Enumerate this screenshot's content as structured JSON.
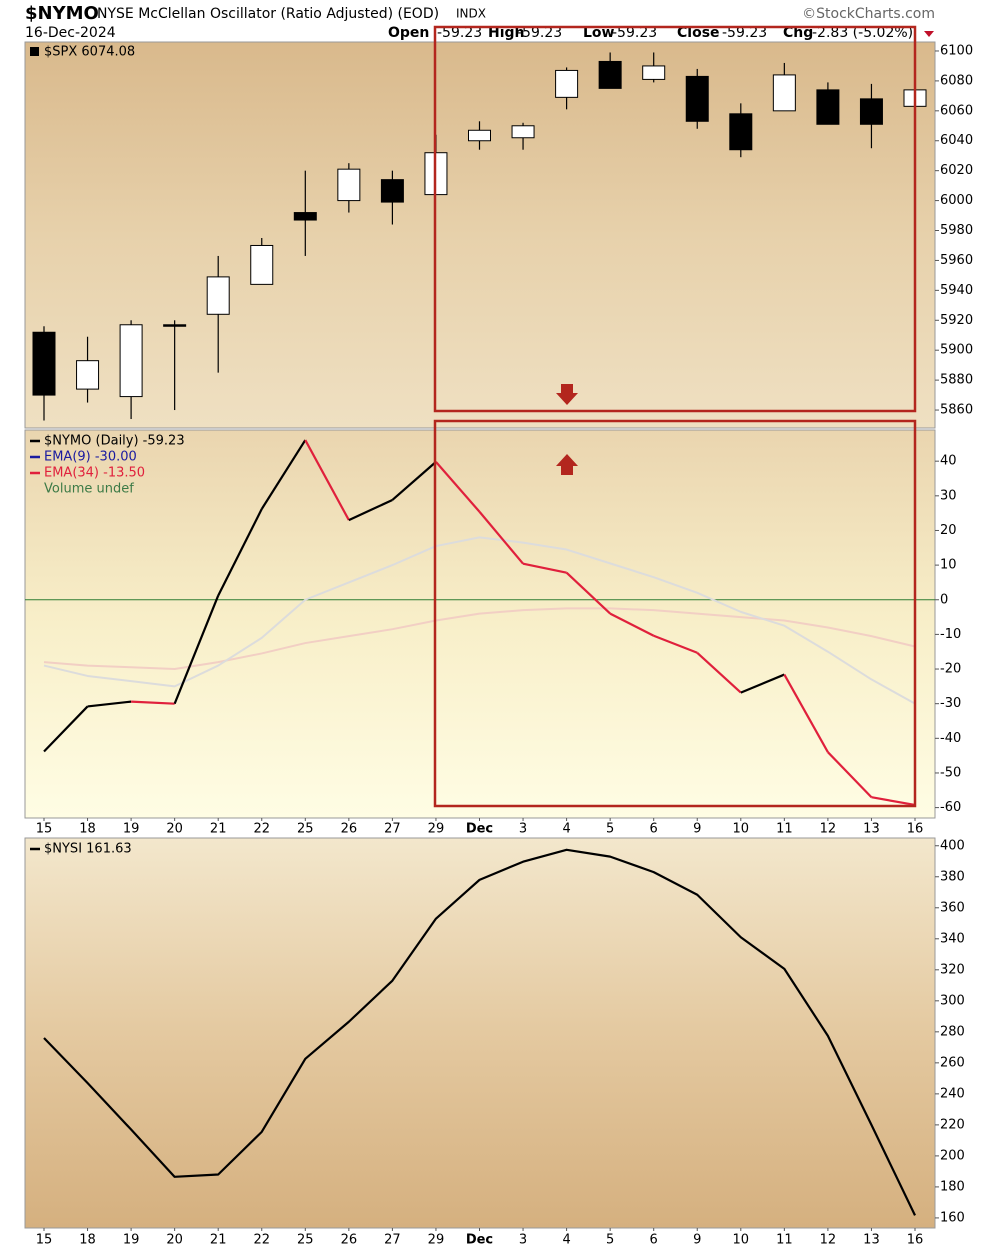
{
  "header": {
    "symbol": "$NYMO",
    "name": "NYSE McClellan Oscillator (Ratio Adjusted) (EOD)",
    "exchange": "INDX",
    "source": "©StockCharts.com",
    "date": "16-Dec-2024",
    "quote": [
      {
        "label": "Open",
        "value": -59.23
      },
      {
        "label": "High",
        "value": -59.23
      },
      {
        "label": "Low",
        "value": -59.23
      },
      {
        "label": "Close",
        "value": -59.23
      },
      {
        "label": "Chg",
        "value": "-2.83 (-5.02%)"
      }
    ]
  },
  "chart_data": [
    {
      "type": "candlestick",
      "legend": "$SPX 6074.08",
      "open": [
        5912,
        5874,
        5869,
        5917,
        5924,
        5944,
        5992,
        6000,
        6014,
        6004,
        6040,
        6042,
        6069,
        6093,
        6081,
        6083,
        6058,
        6060,
        6074,
        6068,
        6063
      ],
      "high": [
        5916,
        5909,
        5920,
        5920,
        5963,
        5975,
        6020,
        6025,
        6020,
        6044,
        6053,
        6052,
        6089,
        6099,
        6099,
        6088,
        6065,
        6092,
        6079,
        6078,
        6075
      ],
      "low": [
        5853,
        5865,
        5854,
        5860,
        5885,
        5944,
        5963,
        5992,
        5984,
        6004,
        6034,
        6034,
        6061,
        6075,
        6079,
        6048,
        6029,
        6060,
        6051,
        6035,
        6061
      ],
      "close": [
        5870,
        5893,
        5917,
        5917,
        5949,
        5970,
        5987,
        6021,
        5999,
        6032,
        6047,
        6050,
        6087,
        6075,
        6090,
        6053,
        6034,
        6084,
        6051,
        6051,
        6074
      ],
      "up_color": "#ffffff",
      "down_color": "#000000",
      "ylim": [
        5848,
        6106
      ],
      "yticks": [
        5860,
        5880,
        5900,
        5920,
        5940,
        5960,
        5980,
        6000,
        6020,
        6040,
        6060,
        6080,
        6100
      ]
    },
    {
      "type": "line",
      "categories": [
        "15",
        "18",
        "19",
        "20",
        "21",
        "22",
        "25",
        "26",
        "27",
        "29",
        "Dec",
        "3",
        "4",
        "5",
        "6",
        "9",
        "10",
        "11",
        "12",
        "13",
        "16"
      ],
      "series": [
        {
          "name": "$NYMO (Daily) -59.23",
          "color": "#000000",
          "down_color": "#e0203c",
          "legend_color": "#000000",
          "values": [
            -43.8,
            -30.8,
            -29.4,
            -30,
            1.2,
            26.2,
            46.1,
            23,
            28.8,
            39.8,
            25.4,
            10.4,
            7.8,
            -4,
            -10.4,
            -15.3,
            -26.8,
            -21.6,
            -44,
            -57,
            -59.23
          ]
        },
        {
          "name": "EMA(9) -30.00",
          "color": "#dcdcdc",
          "legend_color": "#1a1aa0",
          "values": [
            -19,
            -22,
            -23.5,
            -25,
            -19,
            -11,
            0,
            5,
            10,
            15.5,
            18,
            16.5,
            14.5,
            10.5,
            6.5,
            2,
            -3.5,
            -7.5,
            -15,
            -23,
            -30
          ]
        },
        {
          "name": "EMA(34) -13.50",
          "color": "#f2cfc4",
          "legend_color": "#e0203c",
          "values": [
            -18,
            -19,
            -19.5,
            -20,
            -18,
            -15.5,
            -12.5,
            -10.5,
            -8.5,
            -6,
            -4,
            -3,
            -2.5,
            -2.5,
            -3,
            -4,
            -5,
            -6,
            -8,
            -10.5,
            -13.5
          ]
        }
      ],
      "legend_extra": "Volume undef",
      "legend_extra_color": "#3c7a46",
      "zero_line_color": "#2e7d32",
      "ylim": [
        -63,
        49
      ],
      "yticks": [
        40,
        30,
        20,
        10,
        0,
        -10,
        -20,
        -30,
        -40,
        -50,
        -60
      ]
    },
    {
      "type": "line",
      "categories": [
        "15",
        "18",
        "19",
        "20",
        "21",
        "22",
        "25",
        "26",
        "27",
        "29",
        "Dec",
        "3",
        "4",
        "5",
        "6",
        "9",
        "10",
        "11",
        "12",
        "13",
        "16"
      ],
      "series": [
        {
          "name": "$NYSI 161.63",
          "color": "#000000",
          "legend_color": "#000000",
          "values": [
            276,
            247,
            217,
            186.5,
            188,
            215.5,
            262.6,
            286.5,
            313,
            353,
            378,
            389.7,
            397.4,
            393,
            383,
            368.4,
            341,
            320.6,
            277.4,
            220,
            161.63
          ]
        }
      ],
      "ylim": [
        153.5,
        405
      ],
      "yticks": [
        160,
        180,
        200,
        220,
        240,
        260,
        280,
        300,
        320,
        340,
        360,
        380,
        400
      ]
    }
  ]
}
